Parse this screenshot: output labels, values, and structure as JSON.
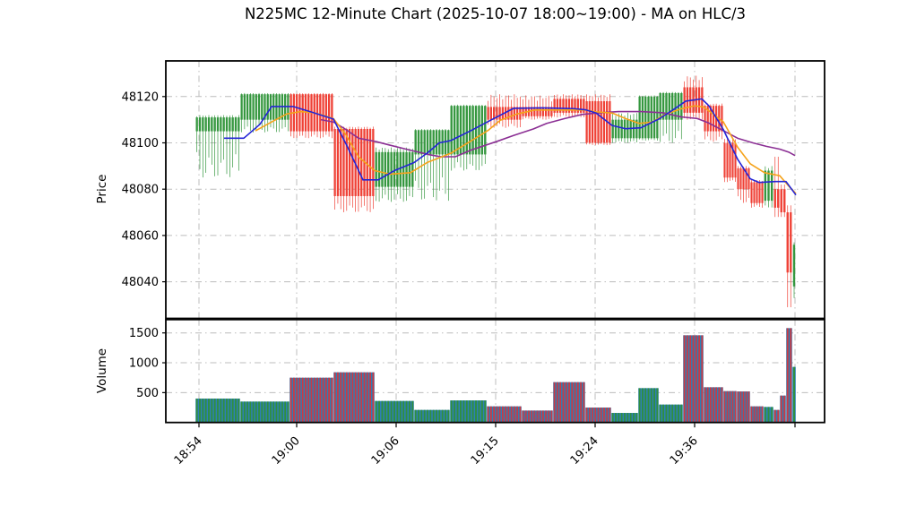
{
  "title": "N225MC 12-Minute Chart (2025-10-07 18:00~19:00) - MA on HLC/3",
  "chart_data": {
    "type": "candlestick+volume",
    "grid": true,
    "price_axis": {
      "label": "Price",
      "ticks": [
        48040,
        48060,
        48080,
        48100,
        48120
      ],
      "range": [
        48026,
        48136
      ]
    },
    "volume_axis": {
      "label": "Volume",
      "ticks": [
        500,
        1000,
        1500
      ],
      "range": [
        0,
        1725
      ]
    },
    "x_axis": {
      "positions": [
        37,
        146,
        257,
        368,
        479,
        590,
        702
      ],
      "labels": [
        "18:54",
        "19:00",
        "19:06",
        "19:15",
        "19:24",
        "19:36",
        ""
      ]
    },
    "colors": {
      "up": "#35973f",
      "down": "#ef4136",
      "vol_up": "#2f8f3f",
      "vol_down": "#c93a45",
      "vol_base": "#2e7fb5",
      "ma_short": "#2424d6",
      "ma_mid": "#f5a31b",
      "ma_long": "#8b2f94",
      "grid": "#bcbcbc",
      "axis": "#000000"
    },
    "groups": [
      {
        "c": "g",
        "x": [
          33,
          83
        ],
        "body": [
          48111,
          48105
        ],
        "wick": [
          48112,
          48085
        ],
        "vol": 400
      },
      {
        "c": "g",
        "x": [
          83,
          138
        ],
        "body": [
          48121,
          48110
        ],
        "wick": [
          48121.5,
          48104.5
        ],
        "vol": 350
      },
      {
        "c": "r",
        "x": [
          138,
          187
        ],
        "body": [
          48121,
          48105
        ],
        "wick": [
          48121.5,
          48102
        ],
        "vol": 750
      },
      {
        "c": "r",
        "x": [
          187,
          233
        ],
        "body": [
          48106,
          48077
        ],
        "wick": [
          48107,
          48070
        ],
        "vol": 840
      },
      {
        "c": "g",
        "x": [
          233,
          277
        ],
        "body": [
          48096,
          48081
        ],
        "wick": [
          48098,
          48074.5
        ],
        "vol": 360
      },
      {
        "c": "g",
        "x": [
          277,
          317
        ],
        "body": [
          48105.5,
          48095
        ],
        "wick": [
          48106,
          48075
        ],
        "vol": 210
      },
      {
        "c": "g",
        "x": [
          317,
          358
        ],
        "body": [
          48116,
          48095
        ],
        "wick": [
          48116.5,
          48088
        ],
        "vol": 370
      },
      {
        "c": "r",
        "x": [
          358,
          397
        ],
        "body": [
          48115.5,
          48110
        ],
        "wick": [
          48121,
          48106.5
        ],
        "vol": 270
      },
      {
        "c": "r",
        "x": [
          397,
          432
        ],
        "body": [
          48115.5,
          48111.5
        ],
        "wick": [
          48120.5,
          48110
        ],
        "vol": 200
      },
      {
        "c": "r",
        "x": [
          432,
          468
        ],
        "body": [
          48119,
          48113
        ],
        "wick": [
          48121,
          48111
        ],
        "vol": 675
      },
      {
        "c": "r",
        "x": [
          468,
          497
        ],
        "body": [
          48118,
          48100
        ],
        "wick": [
          48121,
          48099
        ],
        "vol": 250
      },
      {
        "c": "g",
        "x": [
          497,
          527
        ],
        "body": [
          48110,
          48102
        ],
        "wick": [
          48113,
          48100
        ],
        "vol": 160
      },
      {
        "c": "g",
        "x": [
          527,
          550
        ],
        "body": [
          48120,
          48102
        ],
        "wick": [
          48120.5,
          48101
        ],
        "vol": 575
      },
      {
        "c": "g",
        "x": [
          550,
          577
        ],
        "body": [
          48121.5,
          48110
        ],
        "wick": [
          48122,
          48100
        ],
        "vol": 300
      },
      {
        "c": "r",
        "x": [
          577,
          600
        ],
        "body": [
          48124,
          48113
        ],
        "wick": [
          48129,
          48110
        ],
        "vol": 1460
      },
      {
        "c": "r",
        "x": [
          600,
          622
        ],
        "body": [
          48116,
          48105
        ],
        "wick": [
          48117,
          48100.5
        ],
        "vol": 590
      },
      {
        "c": "r",
        "x": [
          622,
          637
        ],
        "body": [
          48100,
          48085
        ],
        "wick": [
          48102,
          48083
        ],
        "vol": 525
      },
      {
        "c": "r",
        "x": [
          637,
          652
        ],
        "body": [
          48089,
          48080
        ],
        "wick": [
          48090,
          48074
        ],
        "vol": 520
      },
      {
        "c": "r",
        "x": [
          652,
          667
        ],
        "body": [
          48083,
          48074
        ],
        "wick": [
          48084,
          48072
        ],
        "vol": 270
      },
      {
        "c": "g",
        "x": [
          667,
          678
        ],
        "body": [
          48088,
          48075
        ],
        "wick": [
          48090,
          48072
        ],
        "vol": 260
      },
      {
        "c": "r",
        "x": [
          678,
          685
        ],
        "body": [
          48080,
          48072
        ],
        "wick": [
          48094,
          48068
        ],
        "vol": 210
      },
      {
        "c": "r",
        "x": [
          685,
          692
        ],
        "body": [
          48080,
          48070
        ],
        "wick": [
          48082,
          48068
        ],
        "vol": 450
      },
      {
        "c": "r",
        "x": [
          692,
          699
        ],
        "body": [
          48070,
          48044
        ],
        "wick": [
          48073,
          48029
        ],
        "vol": 1580
      },
      {
        "c": "g",
        "x": [
          699,
          703
        ],
        "body": [
          48056,
          48038
        ],
        "wick": [
          48057,
          48033
        ],
        "vol": 930
      }
    ],
    "ma_lines": {
      "short_blue": [
        [
          65,
          48102
        ],
        [
          87,
          48102
        ],
        [
          105,
          48108
        ],
        [
          118,
          48115.7
        ],
        [
          142,
          48115.7
        ],
        [
          165,
          48113
        ],
        [
          187,
          48110.3
        ],
        [
          203,
          48098
        ],
        [
          220,
          48084
        ],
        [
          237,
          48084
        ],
        [
          255,
          48088
        ],
        [
          277,
          48091.5
        ],
        [
          293,
          48096
        ],
        [
          305,
          48100
        ],
        [
          318,
          48101
        ],
        [
          340,
          48105.2
        ],
        [
          362,
          48109.7
        ],
        [
          388,
          48114.9
        ],
        [
          420,
          48115.1
        ],
        [
          455,
          48114.8
        ],
        [
          468,
          48114.3
        ],
        [
          480,
          48112.9
        ],
        [
          498,
          48107.5
        ],
        [
          513,
          48106.1
        ],
        [
          530,
          48106.5
        ],
        [
          550,
          48110.3
        ],
        [
          565,
          48114
        ],
        [
          580,
          48118
        ],
        [
          598,
          48119
        ],
        [
          606,
          48116
        ],
        [
          622,
          48105.8
        ],
        [
          638,
          48092.9
        ],
        [
          652,
          48084.5
        ],
        [
          662,
          48082.9
        ],
        [
          680,
          48083.3
        ],
        [
          692,
          48083.3
        ],
        [
          703,
          48077.5
        ]
      ],
      "mid_orange": [
        [
          100,
          48105.2
        ],
        [
          118,
          48109
        ],
        [
          135,
          48112.5
        ],
        [
          150,
          48113.5
        ],
        [
          165,
          48113
        ],
        [
          175,
          48112
        ],
        [
          187,
          48110.5
        ],
        [
          200,
          48104
        ],
        [
          215,
          48094
        ],
        [
          233,
          48088
        ],
        [
          250,
          48086.5
        ],
        [
          273,
          48087.1
        ],
        [
          292,
          48091.6
        ],
        [
          318,
          48095.5
        ],
        [
          340,
          48100.7
        ],
        [
          360,
          48105.5
        ],
        [
          373,
          48109.7
        ],
        [
          392,
          48112.5
        ],
        [
          412,
          48114.2
        ],
        [
          445,
          48114.2
        ],
        [
          468,
          48114.2
        ],
        [
          480,
          48113.4
        ],
        [
          498,
          48112.9
        ],
        [
          513,
          48110.5
        ],
        [
          528,
          48108.4
        ],
        [
          543,
          48109
        ],
        [
          557,
          48112.3
        ],
        [
          575,
          48114.7
        ],
        [
          590,
          48116
        ],
        [
          600,
          48115.5
        ],
        [
          622,
          48109.1
        ],
        [
          638,
          48098.1
        ],
        [
          652,
          48091
        ],
        [
          668,
          48087.1
        ],
        [
          685,
          48085.8
        ],
        [
          695,
          48081.3
        ],
        [
          703,
          48078.1
        ]
      ],
      "long_purple": [
        [
          173,
          48110
        ],
        [
          187,
          48109
        ],
        [
          200,
          48106
        ],
        [
          215,
          48102
        ],
        [
          235,
          48100.5
        ],
        [
          250,
          48099
        ],
        [
          273,
          48096.8
        ],
        [
          295,
          48094.8
        ],
        [
          307,
          48094
        ],
        [
          323,
          48094
        ],
        [
          340,
          48096.8
        ],
        [
          370,
          48100.7
        ],
        [
          388,
          48103.2
        ],
        [
          410,
          48106
        ],
        [
          425,
          48108.4
        ],
        [
          445,
          48110.5
        ],
        [
          465,
          48112.3
        ],
        [
          485,
          48113
        ],
        [
          505,
          48113.5
        ],
        [
          530,
          48113.5
        ],
        [
          555,
          48113
        ],
        [
          575,
          48111.2
        ],
        [
          593,
          48110.5
        ],
        [
          605,
          48108.7
        ],
        [
          622,
          48105.3
        ],
        [
          638,
          48102
        ],
        [
          655,
          48100
        ],
        [
          670,
          48098.5
        ],
        [
          685,
          48097.3
        ],
        [
          695,
          48096
        ],
        [
          702,
          48094.5
        ]
      ]
    }
  }
}
